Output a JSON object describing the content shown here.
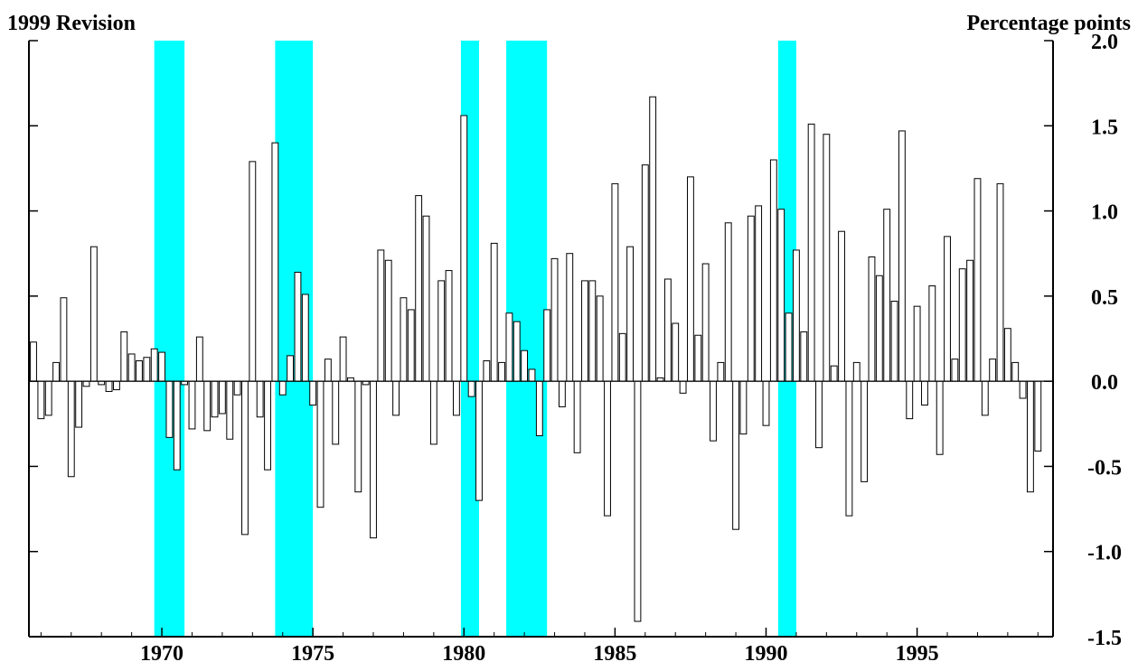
{
  "chart_data": {
    "type": "bar",
    "title_left": "1999 Revision",
    "title_right": "Percentage points",
    "xlim": [
      1965.6,
      1999.5
    ],
    "ylim": [
      -1.5,
      2.0
    ],
    "x_ticks": [
      1970,
      1975,
      1980,
      1985,
      1990,
      1995
    ],
    "x_tick_labels": [
      "1970",
      "1975",
      "1980",
      "1985",
      "1990",
      "1995"
    ],
    "y_ticks": [
      -1.5,
      -1.0,
      -0.5,
      0.0,
      0.5,
      1.0,
      1.5,
      2.0
    ],
    "y_tick_labels": [
      "-1.5",
      "-1.0",
      "-0.5",
      "0.0",
      "0.5",
      "1.0",
      "1.5",
      "2.0"
    ],
    "y_axis_side": "right",
    "recessions": [
      [
        1969.75,
        1970.75
      ],
      [
        1973.75,
        1975.0
      ],
      [
        1979.9,
        1980.5
      ],
      [
        1981.4,
        1982.75
      ],
      [
        1990.4,
        1991.0
      ]
    ],
    "recession_color": "#00ffff",
    "bar_fill": "#ffffff",
    "bar_stroke": "#000000",
    "series": [
      {
        "start_year": 1965.75,
        "step": 0.25,
        "values": [
          0.23,
          -0.22,
          -0.2,
          0.11,
          0.49,
          -0.56,
          -0.27,
          -0.03,
          0.79,
          -0.02,
          -0.06,
          -0.05,
          0.29,
          0.16,
          0.12,
          0.14,
          0.19,
          0.17,
          -0.33,
          -0.52,
          -0.02,
          -0.28,
          0.26,
          -0.29,
          -0.21,
          -0.19,
          -0.34,
          -0.08,
          -0.9,
          1.29,
          -0.21,
          -0.52,
          1.4,
          -0.08,
          0.15,
          0.64,
          0.51,
          -0.14,
          -0.74,
          0.13,
          -0.37,
          0.26,
          0.02,
          -0.65,
          -0.02,
          -0.92,
          0.77,
          0.71,
          -0.2,
          0.49,
          0.42,
          1.09,
          0.97,
          -0.37,
          0.59,
          0.65,
          -0.2,
          1.56,
          -0.09,
          -0.7,
          0.12,
          0.81,
          0.11,
          0.4,
          0.35,
          0.18,
          0.07,
          -0.32,
          0.42,
          0.72,
          -0.15,
          0.75,
          -0.42,
          0.59,
          0.59,
          0.5,
          -0.79,
          1.16,
          0.28,
          0.79,
          -1.41,
          1.27,
          1.67,
          0.02,
          0.6,
          0.34,
          -0.07,
          1.2,
          0.27,
          0.69,
          -0.35,
          0.11,
          0.93,
          -0.87,
          -0.31,
          0.97,
          1.03,
          -0.26,
          1.3,
          1.01,
          0.4,
          0.77,
          0.29,
          1.51,
          -0.39,
          1.45,
          0.09,
          0.88,
          -0.79,
          0.11,
          -0.59,
          0.73,
          0.62,
          1.01,
          0.47,
          1.47,
          -0.22,
          0.44,
          -0.14,
          0.56,
          -0.43,
          0.85,
          0.13,
          0.66,
          0.71,
          1.19,
          -0.2,
          0.13,
          1.16,
          0.31,
          0.11,
          -0.1,
          -0.65,
          -0.41
        ]
      }
    ]
  }
}
